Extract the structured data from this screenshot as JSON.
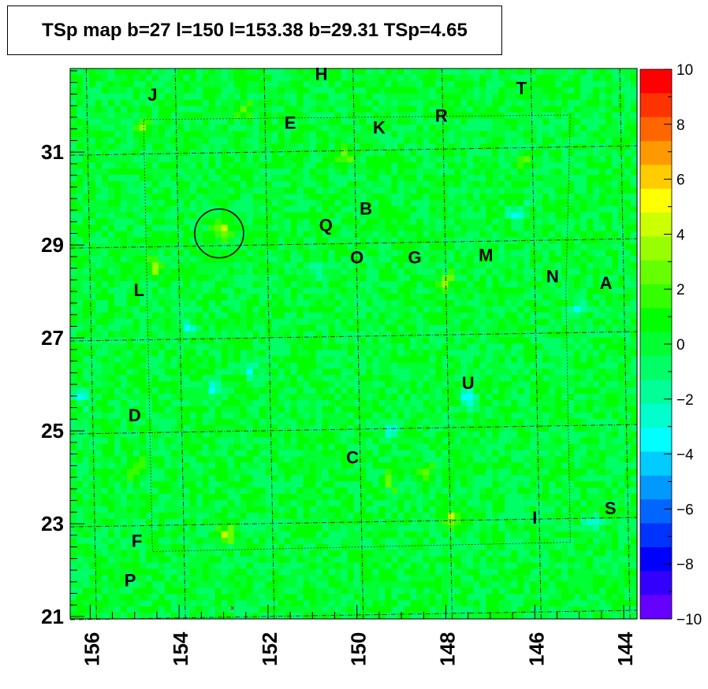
{
  "title": "TSp map b=27 l=150 l=153.38 b=29.31 TSp=4.65",
  "chart_data": {
    "type": "heatmap",
    "title": "TSp map b=27 l=150 l=153.38 b=29.31 TSp=4.65",
    "xlabel": "",
    "ylabel": "",
    "xlim": [
      156.45,
      143.7
    ],
    "ylim": [
      20.95,
      32.8
    ],
    "x_ticks": [
      156,
      154,
      152,
      150,
      148,
      146,
      144
    ],
    "y_ticks": [
      21,
      23,
      25,
      27,
      29,
      31
    ],
    "z_range": [
      -10,
      10
    ],
    "colorbar_ticks": [
      10,
      8,
      6,
      4,
      2,
      0,
      -2,
      -4,
      -6,
      -8,
      -10
    ],
    "colorbar_colors": [
      "#ff0000",
      "#ff3300",
      "#ff6600",
      "#ff9900",
      "#ffcc00",
      "#ffff00",
      "#ccff00",
      "#99ff00",
      "#66ff00",
      "#33ff00",
      "#00ff00",
      "#00ff33",
      "#00ff66",
      "#00ff99",
      "#00ffcc",
      "#00ffff",
      "#00ccff",
      "#0099ff",
      "#0066ff",
      "#0033ff",
      "#0000ff",
      "#3300ff",
      "#6600ff"
    ],
    "background_level": 0,
    "source_markers": [
      {
        "label": "H",
        "l": 150.8,
        "b": 32.65
      },
      {
        "label": "J",
        "l": 154.6,
        "b": 32.2
      },
      {
        "label": "T",
        "l": 146.3,
        "b": 32.35
      },
      {
        "label": "E",
        "l": 151.5,
        "b": 31.6
      },
      {
        "label": "K",
        "l": 149.5,
        "b": 31.5
      },
      {
        "label": "R",
        "l": 148.1,
        "b": 31.75
      },
      {
        "label": "B",
        "l": 149.8,
        "b": 29.75
      },
      {
        "label": "Q",
        "l": 150.7,
        "b": 29.4
      },
      {
        "label": "O",
        "l": 150.0,
        "b": 28.7
      },
      {
        "label": "G",
        "l": 148.7,
        "b": 28.7
      },
      {
        "label": "M",
        "l": 147.1,
        "b": 28.75
      },
      {
        "label": "N",
        "l": 145.6,
        "b": 28.3
      },
      {
        "label": "A",
        "l": 144.4,
        "b": 28.15
      },
      {
        "label": "L",
        "l": 154.9,
        "b": 28.0
      },
      {
        "label": "U",
        "l": 147.5,
        "b": 26.0
      },
      {
        "label": "D",
        "l": 155.0,
        "b": 25.3
      },
      {
        "label": "C",
        "l": 150.1,
        "b": 24.4
      },
      {
        "label": "S",
        "l": 144.3,
        "b": 23.3
      },
      {
        "label": "I",
        "l": 146.0,
        "b": 23.1
      },
      {
        "label": "F",
        "l": 154.95,
        "b": 22.6
      },
      {
        "label": "P",
        "l": 155.1,
        "b": 21.75
      }
    ],
    "highlight_circle": {
      "l": 153.1,
      "b": 29.25,
      "radius_deg": 0.55
    },
    "hotspots": [
      {
        "l": 153.0,
        "b": 29.3,
        "value": 4.65
      },
      {
        "l": 154.5,
        "b": 28.5,
        "value": 3.2
      },
      {
        "l": 154.8,
        "b": 31.5,
        "value": 2.8
      },
      {
        "l": 155.0,
        "b": 24.2,
        "value": 3.0
      },
      {
        "l": 152.9,
        "b": 22.8,
        "value": 4.0
      },
      {
        "l": 147.9,
        "b": 23.1,
        "value": 3.5
      },
      {
        "l": 146.2,
        "b": 30.85,
        "value": 3.2
      },
      {
        "l": 152.6,
        "b": 31.9,
        "value": 2.5
      },
      {
        "l": 148.0,
        "b": 28.2,
        "value": 2.8
      },
      {
        "l": 150.3,
        "b": 30.9,
        "value": 2.6
      },
      {
        "l": 148.5,
        "b": 24.1,
        "value": 2.2
      },
      {
        "l": 149.3,
        "b": 23.9,
        "value": 2.0
      }
    ],
    "coldspots": [
      {
        "l": 153.2,
        "b": 25.9,
        "value": -3.0
      },
      {
        "l": 152.4,
        "b": 26.3,
        "value": -2.6
      },
      {
        "l": 147.5,
        "b": 25.7,
        "value": -3.2
      },
      {
        "l": 145.0,
        "b": 27.6,
        "value": -2.6
      },
      {
        "l": 146.4,
        "b": 29.7,
        "value": -3.0
      },
      {
        "l": 150.9,
        "b": 28.5,
        "value": -2.2
      },
      {
        "l": 153.8,
        "b": 27.2,
        "value": -2.5
      },
      {
        "l": 144.7,
        "b": 23.0,
        "value": -2.8
      },
      {
        "l": 156.2,
        "b": 25.7,
        "value": -2.5
      },
      {
        "l": 149.2,
        "b": 25.0,
        "value": -2.4
      }
    ]
  }
}
